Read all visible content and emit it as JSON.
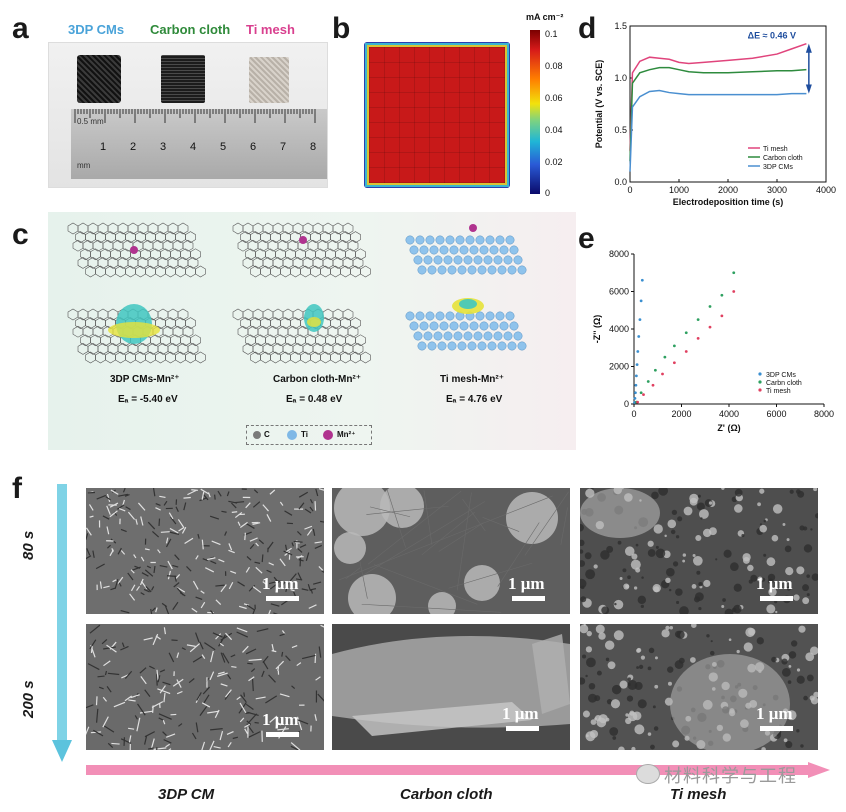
{
  "panel_labels": {
    "a": "a",
    "b": "b",
    "c": "c",
    "d": "d",
    "e": "e",
    "f": "f"
  },
  "panel_a": {
    "samples": [
      {
        "label": "3DP CMs",
        "color": "#4aa3d9"
      },
      {
        "label": "Carbon cloth",
        "color": "#2f8a3a"
      },
      {
        "label": "Ti mesh",
        "color": "#d9408f"
      }
    ],
    "ruler_numbers": [
      "1",
      "2",
      "3",
      "4",
      "5",
      "6",
      "7",
      "8"
    ],
    "ruler_mark": "0.5 mm",
    "ruler_unit": "mm"
  },
  "panel_b": {
    "unit": "mA cm⁻²",
    "ticks": [
      "0.1",
      "0.08",
      "0.06",
      "0.04",
      "0.02",
      "0"
    ]
  },
  "panel_c": {
    "structures": [
      {
        "name": "3DP CMs-Mn²⁺",
        "energy": "Eₐ = -5.40 eV"
      },
      {
        "name": "Carbon cloth-Mn²⁺",
        "energy": "Eₐ = 0.48 eV"
      },
      {
        "name": "Ti mesh-Mn²⁺",
        "energy": "Eₐ = 4.76 eV"
      }
    ],
    "legend": [
      {
        "label": "C",
        "color": "#7a7a7a"
      },
      {
        "label": "Ti",
        "color": "#7fb8e6"
      },
      {
        "label": "Mn²⁺",
        "color": "#b0338f"
      }
    ]
  },
  "chart_data": [
    {
      "type": "line",
      "panel": "d",
      "xlabel": "Electrodeposition time (s)",
      "ylabel": "Potential (V vs. SCE)",
      "xlim": [
        0,
        4000
      ],
      "ylim": [
        0.0,
        1.5
      ],
      "xticks": [
        "0",
        "1000",
        "2000",
        "3000",
        "4000"
      ],
      "yticks": [
        "0.0",
        "0.5",
        "1.0",
        "1.5"
      ],
      "annotation": "ΔE ≈ 0.46 V",
      "legend_position": "bottom-right",
      "series": [
        {
          "name": "Ti mesh",
          "color": "#e0447c",
          "x": [
            0,
            50,
            200,
            400,
            600,
            800,
            1000,
            1200,
            1500,
            2000,
            2500,
            3000,
            3300,
            3600
          ],
          "y": [
            0.3,
            1.05,
            1.16,
            1.2,
            1.19,
            1.18,
            1.15,
            1.14,
            1.15,
            1.17,
            1.19,
            1.23,
            1.28,
            1.33
          ]
        },
        {
          "name": "Carbon cloth",
          "color": "#2e8b3e",
          "x": [
            0,
            50,
            200,
            400,
            600,
            800,
            1000,
            1200,
            1500,
            2000,
            2500,
            3000,
            3300,
            3600
          ],
          "y": [
            0.2,
            0.95,
            1.05,
            1.08,
            1.1,
            1.1,
            1.08,
            1.06,
            1.05,
            1.05,
            1.06,
            1.07,
            1.07,
            1.08
          ]
        },
        {
          "name": "3DP CMs",
          "color": "#4a8fd0",
          "x": [
            0,
            50,
            200,
            400,
            600,
            800,
            1000,
            1200,
            1500,
            2000,
            2500,
            3000,
            3300,
            3600
          ],
          "y": [
            0.1,
            0.72,
            0.82,
            0.87,
            0.88,
            0.86,
            0.85,
            0.84,
            0.84,
            0.84,
            0.84,
            0.84,
            0.85,
            0.85
          ]
        }
      ]
    },
    {
      "type": "scatter",
      "panel": "e",
      "xlabel": "Z' (Ω)",
      "ylabel": "-Z'' (Ω)",
      "xlim": [
        0,
        8000
      ],
      "ylim": [
        0,
        8000
      ],
      "xticks": [
        "0",
        "2000",
        "4000",
        "6000",
        "8000"
      ],
      "yticks": [
        "0",
        "2000",
        "4000",
        "6000",
        "8000"
      ],
      "legend_position": "bottom-right",
      "series": [
        {
          "name": "3DP CMs",
          "color": "#3a8fd0",
          "x": [
            20,
            40,
            60,
            80,
            100,
            130,
            160,
            200,
            250,
            300,
            350
          ],
          "y": [
            80,
            300,
            600,
            1000,
            1500,
            2100,
            2800,
            3600,
            4500,
            5500,
            6600
          ]
        },
        {
          "name": "Carbn cloth",
          "color": "#2ea060",
          "x": [
            100,
            300,
            600,
            900,
            1300,
            1700,
            2200,
            2700,
            3200,
            3700,
            4200
          ],
          "y": [
            100,
            600,
            1200,
            1800,
            2500,
            3100,
            3800,
            4500,
            5200,
            5800,
            7000
          ]
        },
        {
          "name": "Ti mesh",
          "color": "#e04060",
          "x": [
            150,
            400,
            800,
            1200,
            1700,
            2200,
            2700,
            3200,
            3700,
            4200
          ],
          "y": [
            100,
            500,
            1000,
            1600,
            2200,
            2800,
            3500,
            4100,
            4700,
            6000
          ]
        }
      ]
    }
  ],
  "panel_f": {
    "rows": [
      "80 s",
      "200 s"
    ],
    "cols": [
      "3DP CM",
      "Carbon cloth",
      "Ti mesh"
    ],
    "scale": "1 μm"
  },
  "watermark": "材料科学与工程"
}
